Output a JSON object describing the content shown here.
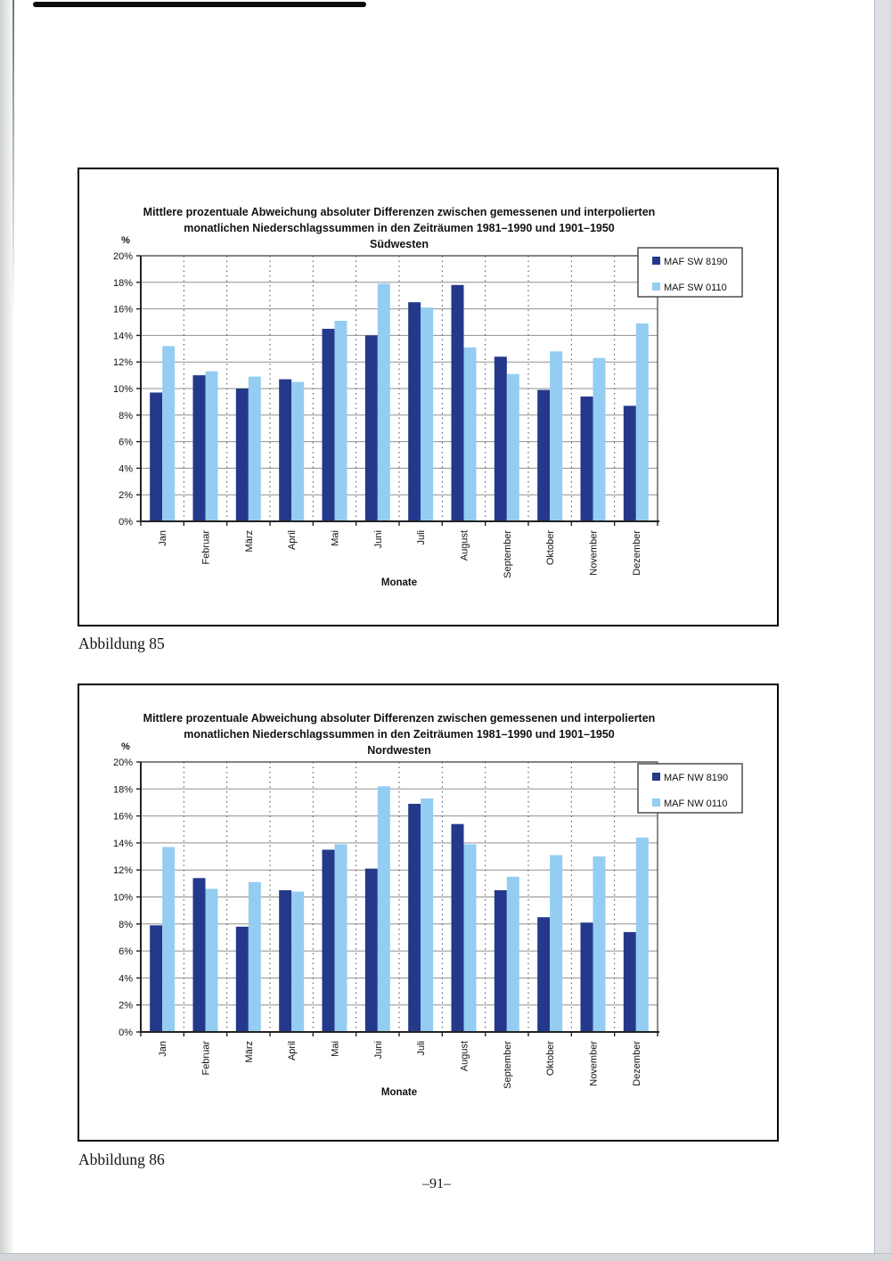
{
  "page": {
    "figure1_caption": "Abbildung 85",
    "figure2_caption": "Abbildung 86",
    "page_number": "–91–"
  },
  "chart_data": [
    {
      "type": "bar",
      "title_line1": "Mittlere prozentuale Abweichung absoluter Differenzen zwischen gemessenen und interpolierten",
      "title_line2": "monatlichen Niederschlagssummen in den Zeiträumen 1981–1990 und 1901–1950",
      "subtitle": "Südwesten",
      "xlabel": "Monate",
      "ylabel": "%",
      "ylim": [
        0,
        20
      ],
      "ytick_step": 2,
      "ytick_suffix": "%",
      "grid": {
        "horizontal": "solid",
        "vertical": "dotted"
      },
      "legend_position": "top-right",
      "categories": [
        "Jan",
        "Februar",
        "März",
        "April",
        "Mai",
        "Juni",
        "Juli",
        "August",
        "September",
        "Oktober",
        "November",
        "Dezember"
      ],
      "series": [
        {
          "name": "MAF SW 8190",
          "color": "#24398b",
          "values": [
            9.7,
            11.0,
            10.0,
            10.7,
            14.5,
            14.0,
            16.5,
            17.8,
            12.4,
            9.9,
            9.4,
            8.7
          ]
        },
        {
          "name": "MAF SW 0110",
          "color": "#94cdf1",
          "values": [
            13.2,
            11.3,
            10.9,
            10.5,
            15.1,
            17.9,
            16.1,
            13.1,
            11.1,
            12.8,
            12.3,
            14.9
          ]
        }
      ]
    },
    {
      "type": "bar",
      "title_line1": "Mittlere prozentuale Abweichung absoluter Differenzen zwischen gemessenen und interpolierten",
      "title_line2": "monatlichen Niederschlagssummen in den Zeiträumen 1981–1990 und 1901–1950",
      "subtitle": "Nordwesten",
      "xlabel": "Monate",
      "ylabel": "%",
      "ylim": [
        0,
        20
      ],
      "ytick_step": 2,
      "ytick_suffix": "%",
      "grid": {
        "horizontal": "solid",
        "vertical": "dotted"
      },
      "legend_position": "top-right",
      "categories": [
        "Jan",
        "Februar",
        "März",
        "April",
        "Mai",
        "Juni",
        "Juli",
        "August",
        "September",
        "Oktober",
        "November",
        "Dezember"
      ],
      "series": [
        {
          "name": "MAF NW 8190",
          "color": "#24398b",
          "values": [
            7.9,
            11.4,
            7.8,
            10.5,
            13.5,
            12.1,
            16.9,
            15.4,
            10.5,
            8.5,
            8.1,
            7.4
          ]
        },
        {
          "name": "MAF NW 0110",
          "color": "#94cdf1",
          "values": [
            13.7,
            10.6,
            11.1,
            10.4,
            13.9,
            18.2,
            17.3,
            13.9,
            11.5,
            13.1,
            13.0,
            14.4
          ]
        }
      ]
    }
  ]
}
